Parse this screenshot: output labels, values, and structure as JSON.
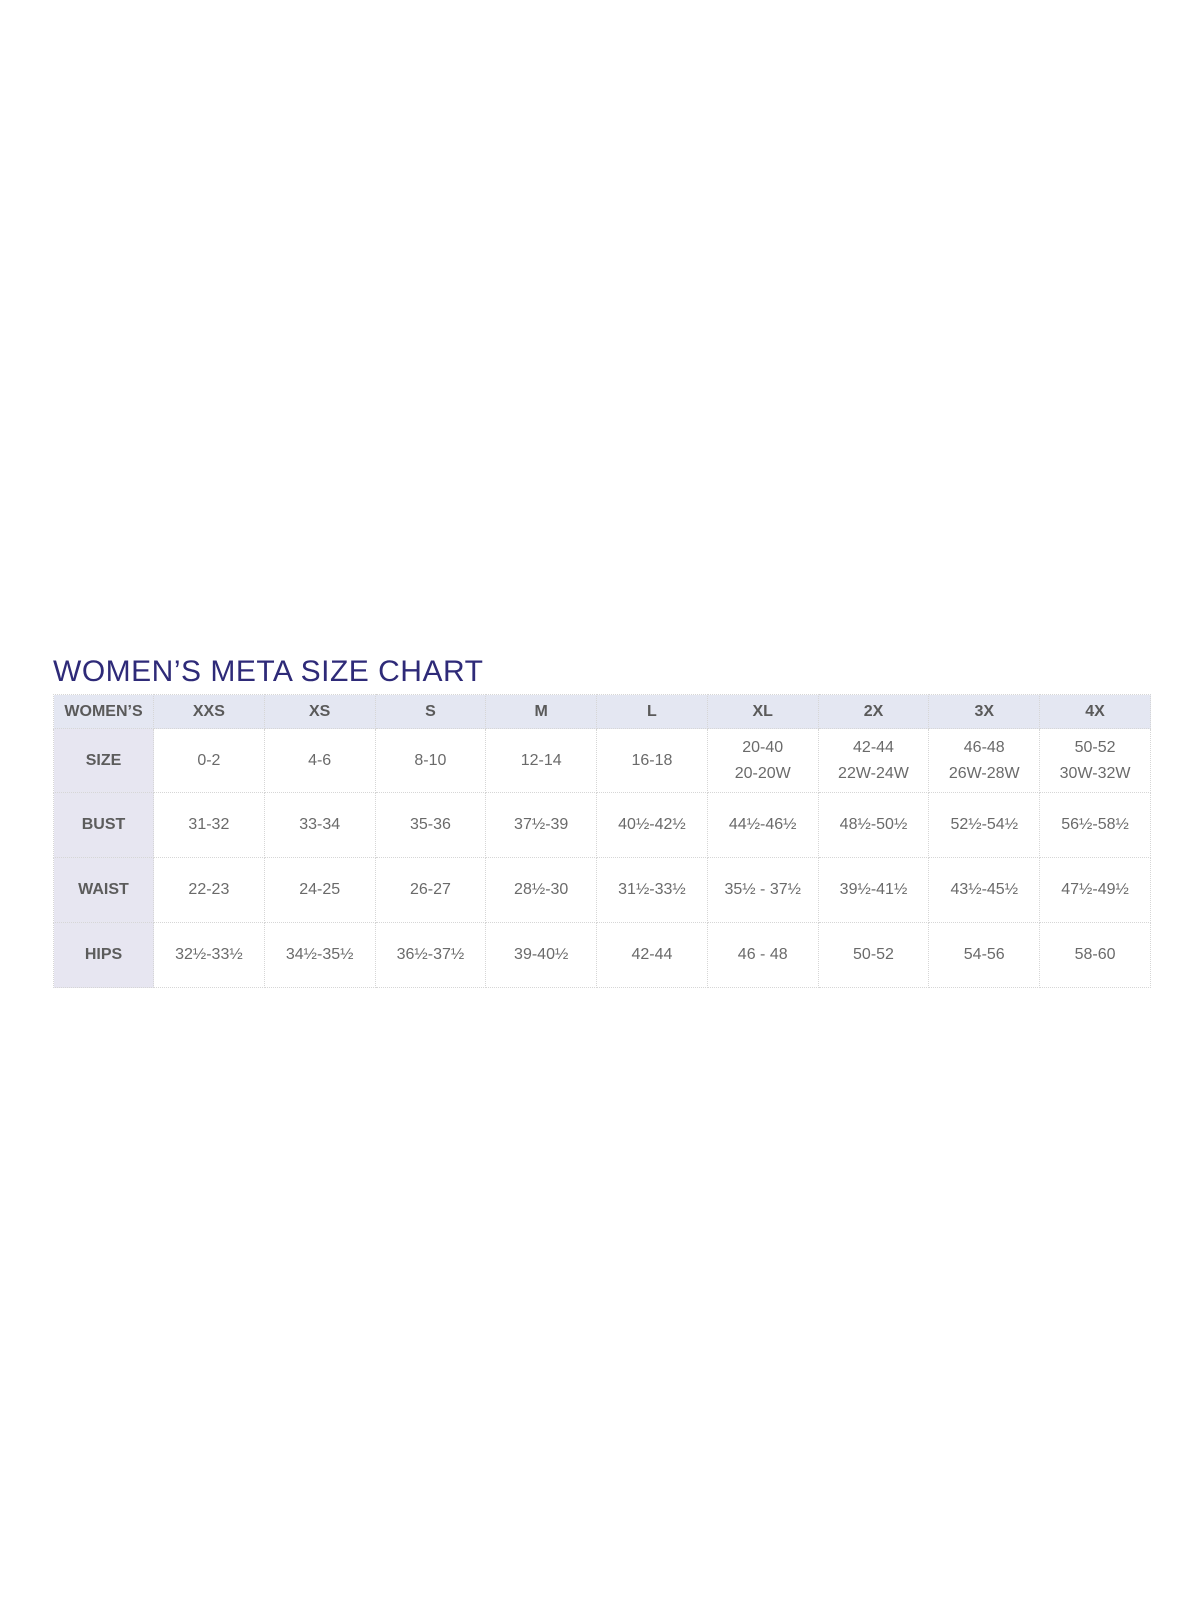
{
  "title": "WOMEN’S META SIZE CHART",
  "table": {
    "corner": "WOMEN’S",
    "columns": [
      "XXS",
      "XS",
      "S",
      "M",
      "L",
      "XL",
      "2X",
      "3X",
      "4X"
    ],
    "rows": [
      {
        "label": "SIZE",
        "cells": [
          [
            "0-2"
          ],
          [
            "4-6"
          ],
          [
            "8-10"
          ],
          [
            "12-14"
          ],
          [
            "16-18"
          ],
          [
            "20-40",
            "20-20W"
          ],
          [
            "42-44",
            "22W-24W"
          ],
          [
            "46-48",
            "26W-28W"
          ],
          [
            "50-52",
            "30W-32W"
          ]
        ]
      },
      {
        "label": "BUST",
        "cells": [
          [
            "31-32"
          ],
          [
            "33-34"
          ],
          [
            "35-36"
          ],
          [
            "37½-39"
          ],
          [
            "40½-42½"
          ],
          [
            "44½-46½"
          ],
          [
            "48½-50½"
          ],
          [
            "52½-54½"
          ],
          [
            "56½-58½"
          ]
        ]
      },
      {
        "label": "WAIST",
        "cells": [
          [
            "22-23"
          ],
          [
            "24-25"
          ],
          [
            "26-27"
          ],
          [
            "28½-30"
          ],
          [
            "31½-33½"
          ],
          [
            "35½ - 37½"
          ],
          [
            "39½-41½"
          ],
          [
            "43½-45½"
          ],
          [
            "47½-49½"
          ]
        ]
      },
      {
        "label": "HIPS",
        "cells": [
          [
            "32½-33½"
          ],
          [
            "34½-35½"
          ],
          [
            "36½-37½"
          ],
          [
            "39-40½"
          ],
          [
            "42-44"
          ],
          [
            "46 - 48"
          ],
          [
            "50-52"
          ],
          [
            "54-56"
          ],
          [
            "58-60"
          ]
        ]
      }
    ]
  },
  "colors": {
    "title": "#2e2a78",
    "header_bg": "#e4e7f2",
    "label_bg": "#e7e6f1",
    "text": "#6a6a6a"
  }
}
